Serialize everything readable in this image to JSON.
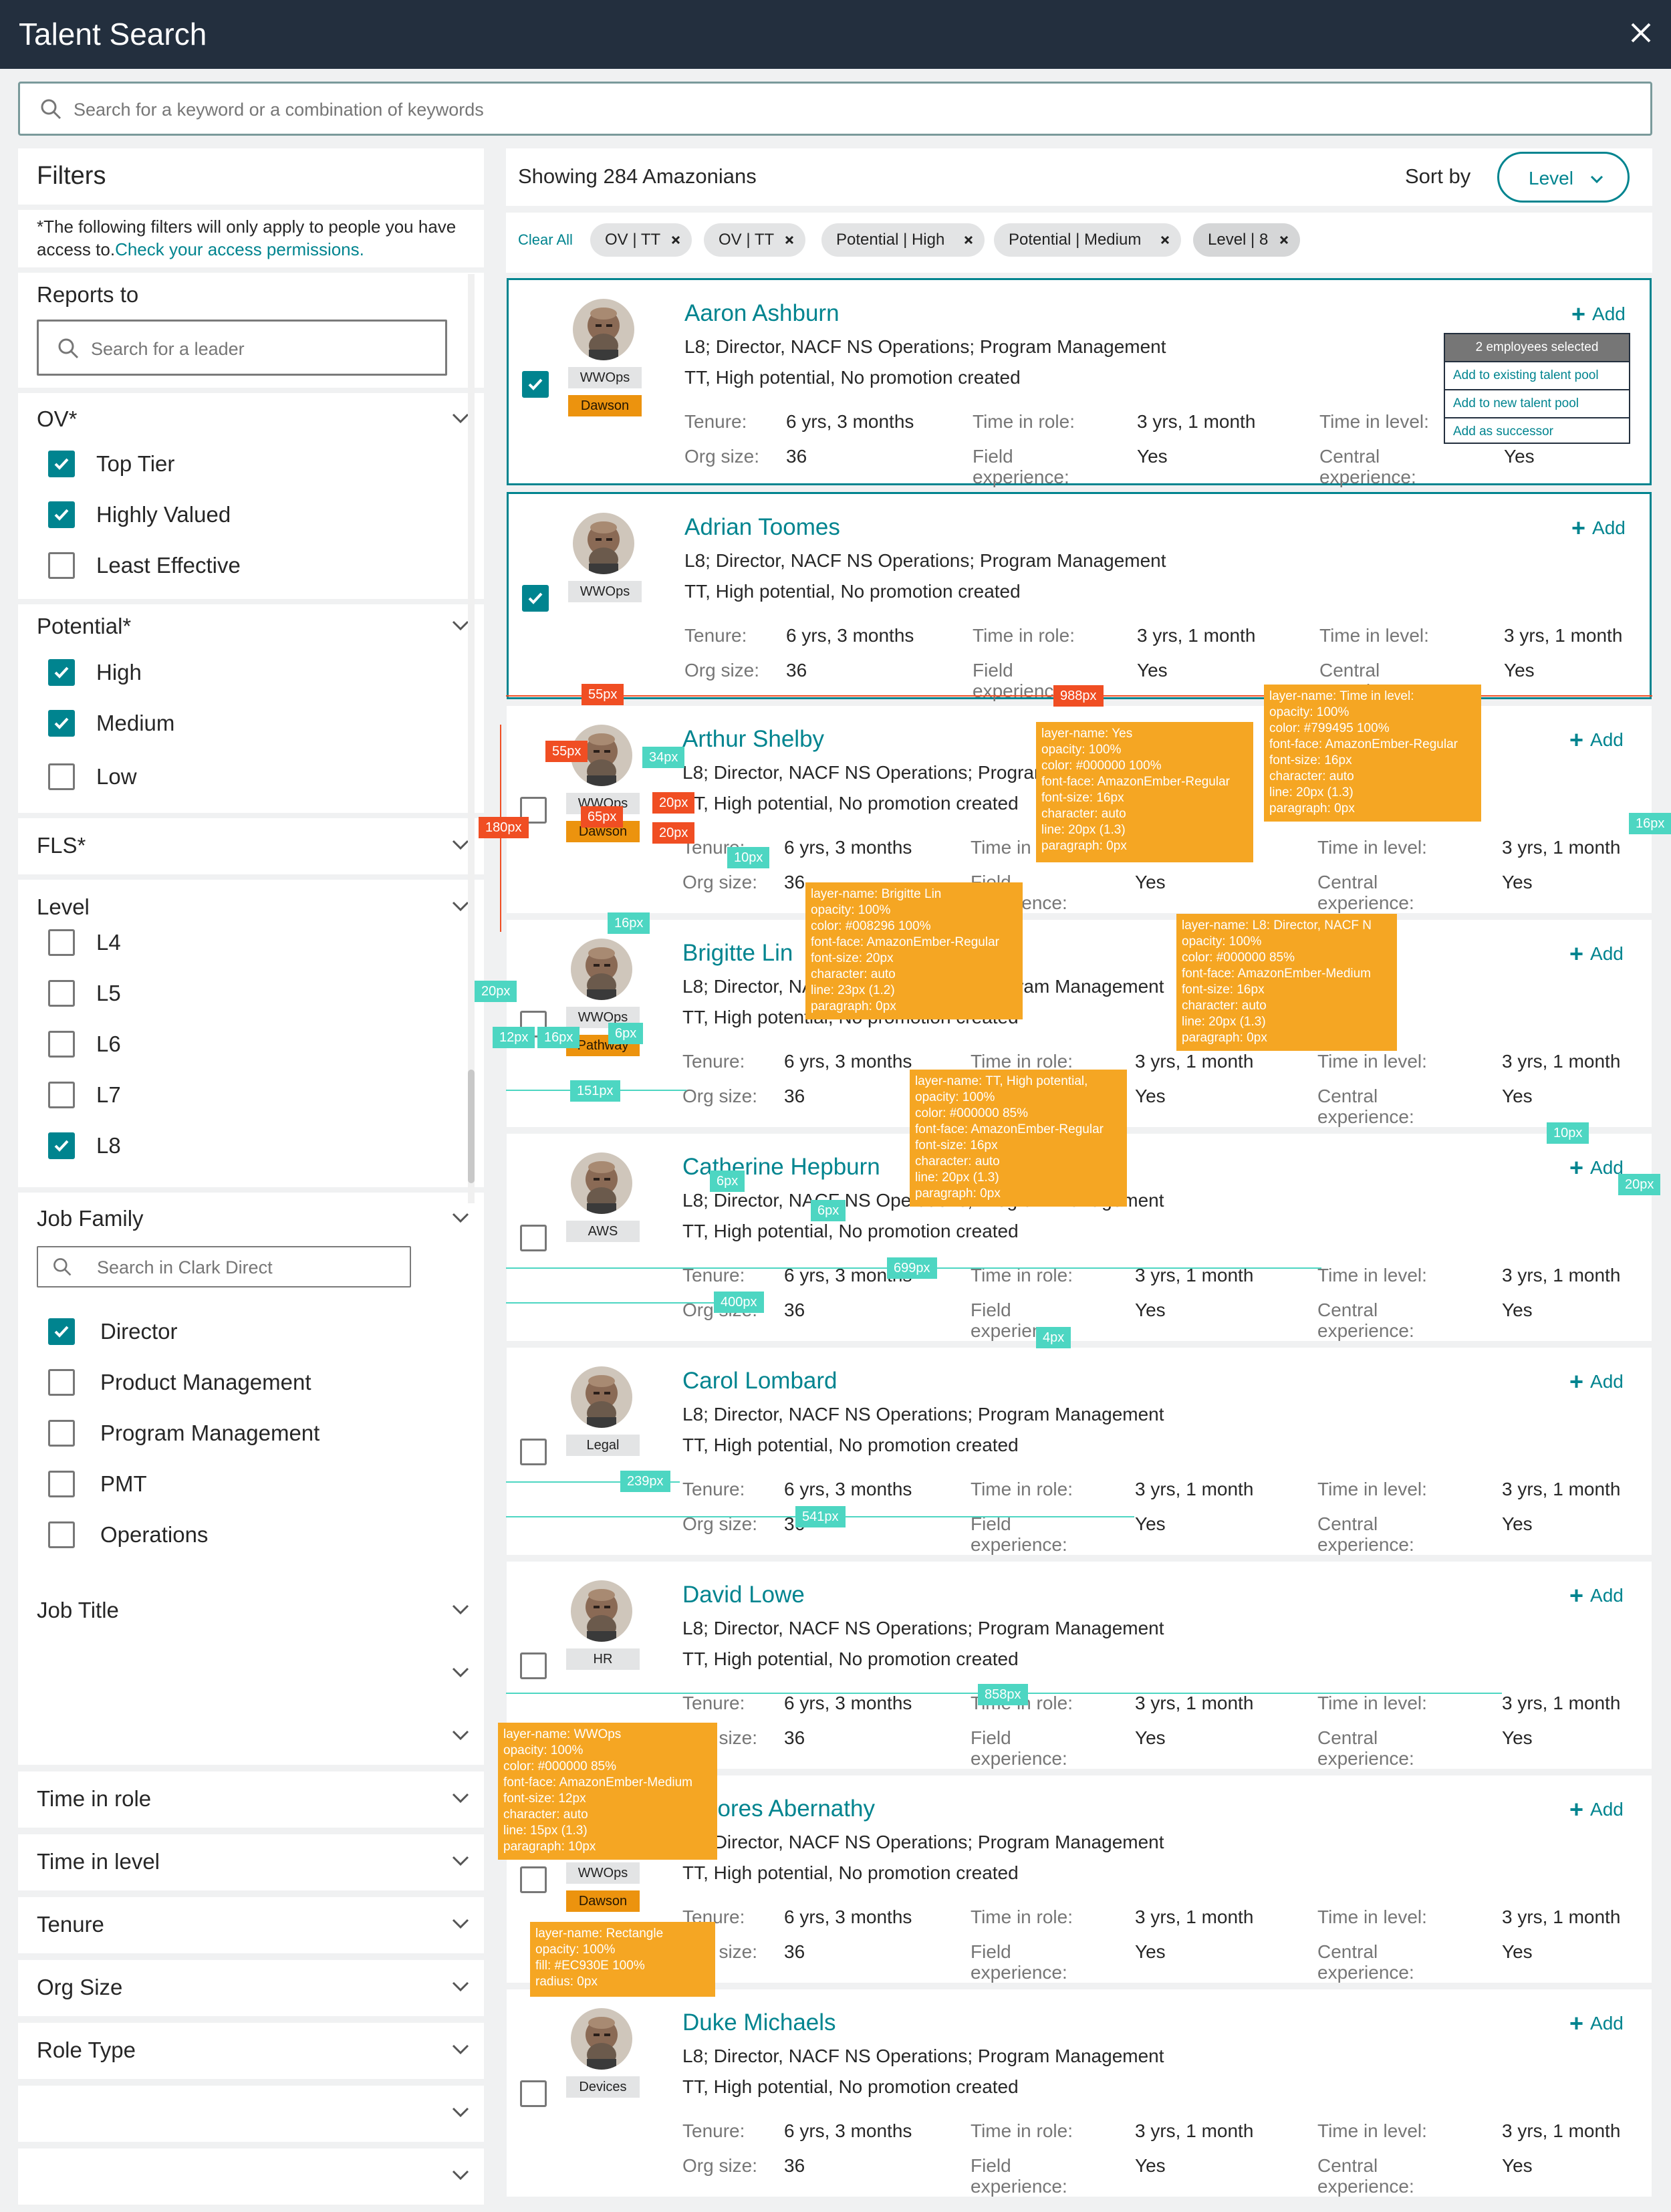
{
  "app": {
    "title": "Talent Search"
  },
  "search": {
    "placeholder": "Search for a keyword or a combination of keywords"
  },
  "filters": {
    "title": "Filters",
    "note": "*The following filters will only apply to people you have access to.",
    "note_link": "Check your access permissions.",
    "reports_to": {
      "label": "Reports to",
      "placeholder": "Search for a leader"
    },
    "ov": {
      "label": "OV*",
      "options": [
        {
          "label": "Top Tier",
          "checked": true
        },
        {
          "label": "Highly Valued",
          "checked": true
        },
        {
          "label": "Least Effective",
          "checked": false
        }
      ]
    },
    "potential": {
      "label": "Potential*",
      "options": [
        {
          "label": "High",
          "checked": true
        },
        {
          "label": "Medium",
          "checked": true
        },
        {
          "label": "Low",
          "checked": false
        }
      ]
    },
    "fls": {
      "label": "FLS*"
    },
    "level": {
      "label": "Level",
      "options": [
        {
          "label": "L4",
          "checked": false
        },
        {
          "label": "L5",
          "checked": false
        },
        {
          "label": "L6",
          "checked": false
        },
        {
          "label": "L7",
          "checked": false
        },
        {
          "label": "L8",
          "checked": true
        }
      ]
    },
    "job_family": {
      "label": "Job Family",
      "placeholder": "Search in Clark Direct",
      "options": [
        {
          "label": "Director",
          "checked": true
        },
        {
          "label": "Product Management",
          "checked": false
        },
        {
          "label": "Program Management",
          "checked": false
        },
        {
          "label": "PMT",
          "checked": false
        },
        {
          "label": "Operations",
          "checked": false
        }
      ]
    },
    "collapsed": [
      "Job Title",
      "",
      "",
      "Time in role",
      "Time in level",
      "Tenure",
      "Org Size",
      "Role Type",
      "",
      ""
    ]
  },
  "results": {
    "showing": "Showing 284 Amazonians",
    "sort_label": "Sort by",
    "sort_value": "Level",
    "clear_all": "Clear All",
    "chips": [
      "OV | TT",
      "OV | TT",
      "Potential | High",
      "Potential | Medium",
      "Level | 8"
    ],
    "labels": {
      "tenure": "Tenure:",
      "time_in_role": "Time in role:",
      "time_in_level": "Time in level:",
      "org_size": "Org size:",
      "field_experience": "Field experience:",
      "central_experience": "Central experience:",
      "add": "Add"
    },
    "people": [
      {
        "name": "Aaron Ashburn",
        "title": "L8; Director, NACF NS Operations; Program Management",
        "status": "TT, High potential, No promotion created",
        "tags": [
          "WWOps",
          "Dawson"
        ],
        "selected": true,
        "tenure": "6 yrs, 3 months",
        "time_in_role": "3 yrs, 1 month",
        "time_in_level": "3 yrs, 1 month",
        "org_size": "36",
        "field": "Yes",
        "central": "Yes"
      },
      {
        "name": "Adrian Toomes",
        "title": "L8; Director, NACF NS Operations; Program Management",
        "status": "TT, High potential, No promotion created",
        "tags": [
          "WWOps"
        ],
        "selected": true,
        "tenure": "6 yrs, 3 months",
        "time_in_role": "3 yrs, 1 month",
        "time_in_level": "3 yrs, 1 month",
        "org_size": "36",
        "field": "Yes",
        "central": "Yes"
      },
      {
        "name": "Arthur Shelby",
        "title": "L8; Director, NACF NS Operations; Program Management",
        "status": "TT, High potential, No promotion created",
        "tags": [
          "WWOps",
          "Dawson"
        ],
        "selected": false,
        "tenure": "6 yrs, 3 months",
        "time_in_role": "3 yrs, 1 month",
        "time_in_level": "3 yrs, 1 month",
        "org_size": "36",
        "field": "Yes",
        "central": "Yes"
      },
      {
        "name": "Brigitte Lin",
        "title": "L8; Director, NACF NS Operations; Program Management",
        "status": "TT, High potential, No promotion created",
        "tags": [
          "WWOps",
          "Pathway"
        ],
        "selected": false,
        "tenure": "6 yrs, 3 months",
        "time_in_role": "3 yrs, 1 month",
        "time_in_level": "3 yrs, 1 month",
        "org_size": "36",
        "field": "Yes",
        "central": "Yes"
      },
      {
        "name": "Catherine Hepburn",
        "title": "L8; Director, NACF NS Operations; Program Management",
        "status": "TT, High potential, No promotion created",
        "tags": [
          "AWS"
        ],
        "selected": false,
        "tenure": "6 yrs, 3 months",
        "time_in_role": "3 yrs, 1 month",
        "time_in_level": "3 yrs, 1 month",
        "org_size": "36",
        "field": "Yes",
        "central": "Yes"
      },
      {
        "name": "Carol Lombard",
        "title": "L8; Director, NACF NS Operations; Program Management",
        "status": "TT, High potential, No promotion created",
        "tags": [
          "Legal"
        ],
        "selected": false,
        "tenure": "6 yrs, 3 months",
        "time_in_role": "3 yrs, 1 month",
        "time_in_level": "3 yrs, 1 month",
        "org_size": "36",
        "field": "Yes",
        "central": "Yes"
      },
      {
        "name": "David Lowe",
        "title": "L8; Director, NACF NS Operations; Program Management",
        "status": "TT, High potential, No promotion created",
        "tags": [
          "HR"
        ],
        "selected": false,
        "tenure": "6 yrs, 3 months",
        "time_in_role": "3 yrs, 1 month",
        "time_in_level": "3 yrs, 1 month",
        "org_size": "36",
        "field": "Yes",
        "central": "Yes"
      },
      {
        "name": "Dolores Abernathy",
        "title": "L8; Director, NACF NS Operations; Program Management",
        "status": "TT, High potential, No promotion created",
        "tags": [
          "WWOps",
          "Dawson"
        ],
        "selected": false,
        "tenure": "6 yrs, 3 months",
        "time_in_role": "3 yrs, 1 month",
        "time_in_level": "3 yrs, 1 month",
        "org_size": "36",
        "field": "Yes",
        "central": "Yes"
      },
      {
        "name": "Duke Michaels",
        "title": "L8; Director, NACF NS Operations; Program Management",
        "status": "TT, High potential, No promotion created",
        "tags": [
          "Devices"
        ],
        "selected": false,
        "tenure": "6 yrs, 3 months",
        "time_in_role": "3 yrs, 1 month",
        "time_in_level": "3 yrs, 1 month",
        "org_size": "36",
        "field": "Yes",
        "central": "Yes"
      }
    ]
  },
  "menu": {
    "header": "2 employees selected",
    "items": [
      "Add to existing talent pool",
      "Add to new talent pool",
      "Add as successor"
    ]
  },
  "annotations": [
    "layer-name: Yes\nopacity: 100%\ncolor: #000000 100%\nfont-face: AmazonEmber-Regular\nfont-size: 16px\ncharacter: auto\nline: 20px (1.3)\nparagraph: 0px",
    "layer-name: Time in level:\nopacity: 100%\ncolor: #799495 100%\nfont-face: AmazonEmber-Regular\nfont-size: 16px\ncharacter: auto\nline: 20px (1.3)\nparagraph: 0px",
    "layer-name: Brigitte Lin\nopacity: 100%\ncolor: #008296 100%\nfont-face: AmazonEmber-Regular\nfont-size: 20px\ncharacter: auto\nline: 23px (1.2)\nparagraph: 0px",
    "layer-name: L8: Director, NACF N\nopacity: 100%\ncolor: #000000 85%\nfont-face: AmazonEmber-Medium\nfont-size: 16px\ncharacter: auto\nline: 20px (1.3)\nparagraph: 0px",
    "layer-name: TT, High potential,\nopacity: 100%\ncolor: #000000 85%\nfont-face: AmazonEmber-Regular\nfont-size: 16px\ncharacter: auto\nline: 20px (1.3)\nparagraph: 0px",
    "layer-name: WWOps\nopacity: 100%\ncolor: #000000 85%\nfont-face: AmazonEmber-Medium\nfont-size: 12px\ncharacter: auto\nline: 15px (1.3)\nparagraph: 10px",
    "layer-name: Rectangle\nopacity: 100%\nfill: #EC930E 100%\nradius: 0px"
  ],
  "measurements_red": [
    "55px",
    "55px",
    "180px",
    "988px",
    "65px",
    "20px",
    "20px"
  ],
  "measurements_teal": [
    "34px",
    "10px",
    "16px",
    "16px",
    "20px",
    "12px",
    "16px",
    "6px",
    "151px",
    "10px",
    "20px",
    "6px",
    "6px",
    "699px",
    "400px",
    "4px",
    "239px",
    "541px",
    "858px"
  ]
}
